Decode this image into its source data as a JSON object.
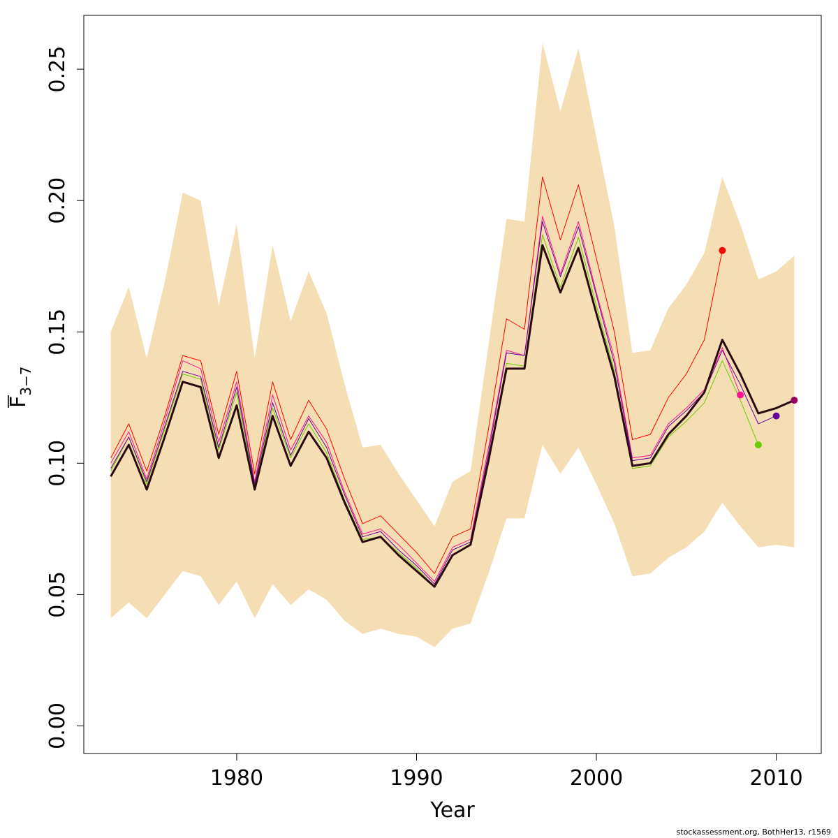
{
  "chart_data": {
    "type": "line",
    "xlabel": "Year",
    "ylabel_main": "F",
    "ylabel_sub": "3−7",
    "xlim": [
      1971.5,
      2012.5
    ],
    "ylim": [
      -0.0105,
      0.2705
    ],
    "x_ticks": [
      "1980",
      "1990",
      "2000",
      "2010"
    ],
    "y_ticks": [
      "0.00",
      "0.05",
      "0.10",
      "0.15",
      "0.20",
      "0.25"
    ],
    "grid": false,
    "legend": "none",
    "credit": "stockassessment.org, BothHer13, r1569",
    "band_color": "#f5deb3",
    "years": [
      1973,
      1974,
      1975,
      1976,
      1977,
      1978,
      1979,
      1980,
      1981,
      1982,
      1983,
      1984,
      1985,
      1986,
      1987,
      1988,
      1989,
      1990,
      1991,
      1992,
      1993,
      1994,
      1995,
      1996,
      1997,
      1998,
      1999,
      2000,
      2001,
      2002,
      2003,
      2004,
      2005,
      2006,
      2007,
      2008,
      2009,
      2010,
      2011
    ],
    "confidence_band": {
      "upper": [
        0.15,
        0.167,
        0.14,
        0.169,
        0.203,
        0.2,
        0.16,
        0.191,
        0.14,
        0.183,
        0.154,
        0.173,
        0.157,
        0.13,
        0.106,
        0.107,
        0.096,
        0.086,
        0.076,
        0.093,
        0.097,
        0.145,
        0.193,
        0.192,
        0.26,
        0.234,
        0.258,
        0.224,
        0.19,
        0.142,
        0.143,
        0.159,
        0.168,
        0.18,
        0.209,
        0.191,
        0.17,
        0.173,
        0.179
      ],
      "lower": [
        0.041,
        0.047,
        0.041,
        0.05,
        0.059,
        0.057,
        0.046,
        0.055,
        0.041,
        0.054,
        0.046,
        0.052,
        0.048,
        0.04,
        0.035,
        0.037,
        0.035,
        0.034,
        0.03,
        0.037,
        0.039,
        0.058,
        0.079,
        0.079,
        0.107,
        0.096,
        0.106,
        0.092,
        0.077,
        0.057,
        0.058,
        0.064,
        0.068,
        0.074,
        0.085,
        0.076,
        0.068,
        0.069,
        0.068
      ]
    },
    "series": [
      {
        "color": "#ff0000",
        "end_year": 2007,
        "point": true,
        "width": 1,
        "values": [
          0.102,
          0.115,
          0.097,
          0.118,
          0.141,
          0.139,
          0.111,
          0.135,
          0.096,
          0.131,
          0.109,
          0.124,
          0.113,
          0.094,
          0.077,
          0.08,
          0.073,
          0.066,
          0.058,
          0.072,
          0.075,
          0.113,
          0.155,
          0.151,
          0.209,
          0.185,
          0.206,
          0.178,
          0.15,
          0.109,
          0.111,
          0.125,
          0.134,
          0.147,
          0.181
        ]
      },
      {
        "color": "#ff1493",
        "end_year": 2008,
        "point": true,
        "width": 1,
        "values": [
          0.1,
          0.112,
          0.094,
          0.116,
          0.139,
          0.136,
          0.108,
          0.131,
          0.093,
          0.126,
          0.105,
          0.118,
          0.108,
          0.089,
          0.073,
          0.075,
          0.069,
          0.062,
          0.055,
          0.068,
          0.071,
          0.106,
          0.143,
          0.141,
          0.194,
          0.172,
          0.192,
          0.165,
          0.14,
          0.102,
          0.103,
          0.115,
          0.121,
          0.128,
          0.144,
          0.126
        ]
      },
      {
        "color": "#66cc00",
        "end_year": 2009,
        "point": true,
        "width": 1,
        "values": [
          0.097,
          0.11,
          0.092,
          0.113,
          0.134,
          0.132,
          0.105,
          0.127,
          0.091,
          0.121,
          0.102,
          0.115,
          0.104,
          0.086,
          0.071,
          0.072,
          0.066,
          0.06,
          0.053,
          0.065,
          0.069,
          0.101,
          0.138,
          0.137,
          0.187,
          0.167,
          0.186,
          0.16,
          0.135,
          0.098,
          0.099,
          0.11,
          0.116,
          0.123,
          0.139,
          0.124,
          0.107
        ]
      },
      {
        "color": "#660099",
        "end_year": 2010,
        "point": true,
        "width": 1,
        "values": [
          0.098,
          0.11,
          0.093,
          0.114,
          0.135,
          0.133,
          0.106,
          0.129,
          0.092,
          0.123,
          0.103,
          0.117,
          0.106,
          0.088,
          0.072,
          0.074,
          0.067,
          0.061,
          0.054,
          0.067,
          0.07,
          0.104,
          0.142,
          0.141,
          0.192,
          0.171,
          0.19,
          0.164,
          0.138,
          0.101,
          0.102,
          0.114,
          0.12,
          0.127,
          0.143,
          0.13,
          0.115,
          0.118
        ]
      },
      {
        "color": "#2a0a10",
        "end_year": 2011,
        "point": false,
        "width": 3,
        "values": [
          0.095,
          0.107,
          0.09,
          0.11,
          0.131,
          0.129,
          0.102,
          0.122,
          0.09,
          0.118,
          0.099,
          0.112,
          0.102,
          0.085,
          0.07,
          0.072,
          0.065,
          0.059,
          0.053,
          0.065,
          0.069,
          0.101,
          0.136,
          0.136,
          0.183,
          0.165,
          0.182,
          0.157,
          0.133,
          0.099,
          0.1,
          0.111,
          0.118,
          0.127,
          0.147,
          0.134,
          0.119,
          0.121,
          0.124
        ]
      }
    ],
    "final_point": {
      "year": 2011,
      "value": 0.124,
      "color": "#990066"
    }
  }
}
